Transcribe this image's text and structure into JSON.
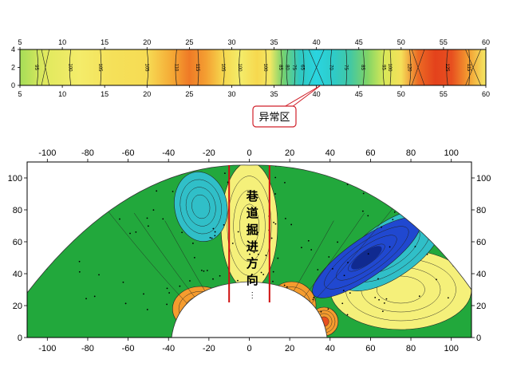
{
  "chart_data": [
    {
      "type": "heatmap",
      "title": "",
      "xlabel": "",
      "ylabel": "",
      "xlim": [
        5,
        60
      ],
      "ylim": [
        0,
        4
      ],
      "x_ticks": [
        "5",
        "10",
        "15",
        "20",
        "25",
        "30",
        "35",
        "40",
        "45",
        "50",
        "55",
        "60"
      ],
      "y_ticks": [
        "0",
        "2",
        "4"
      ],
      "contour_labels": [
        {
          "x": 7,
          "label": "95"
        },
        {
          "x": 11,
          "label": "100"
        },
        {
          "x": 14.5,
          "label": "105"
        },
        {
          "x": 20,
          "label": "105"
        },
        {
          "x": 23.5,
          "label": "110"
        },
        {
          "x": 26,
          "label": "115"
        },
        {
          "x": 29,
          "label": "105"
        },
        {
          "x": 31,
          "label": "100"
        },
        {
          "x": 34,
          "label": "100"
        },
        {
          "x": 35.8,
          "label": "85"
        },
        {
          "x": 36.6,
          "label": "80"
        },
        {
          "x": 37.4,
          "label": "75"
        },
        {
          "x": 38.4,
          "label": "65"
        },
        {
          "x": 41.8,
          "label": "70"
        },
        {
          "x": 43.5,
          "label": "75"
        },
        {
          "x": 45.5,
          "label": "85"
        },
        {
          "x": 48,
          "label": "95"
        },
        {
          "x": 48.7,
          "label": "100"
        },
        {
          "x": 51,
          "label": "120"
        },
        {
          "x": 55.5,
          "label": "125"
        },
        {
          "x": 58,
          "label": "115"
        }
      ],
      "value_profile": [
        {
          "x": 5,
          "v": 90
        },
        {
          "x": 8,
          "v": 97
        },
        {
          "x": 12,
          "v": 101
        },
        {
          "x": 16,
          "v": 104
        },
        {
          "x": 20,
          "v": 105
        },
        {
          "x": 23,
          "v": 112
        },
        {
          "x": 25,
          "v": 118
        },
        {
          "x": 27,
          "v": 113
        },
        {
          "x": 29,
          "v": 106
        },
        {
          "x": 31,
          "v": 101
        },
        {
          "x": 33,
          "v": 106
        },
        {
          "x": 34.5,
          "v": 102
        },
        {
          "x": 36,
          "v": 85
        },
        {
          "x": 38,
          "v": 70
        },
        {
          "x": 40,
          "v": 62
        },
        {
          "x": 42,
          "v": 68
        },
        {
          "x": 44,
          "v": 76
        },
        {
          "x": 46,
          "v": 86
        },
        {
          "x": 48,
          "v": 95
        },
        {
          "x": 50,
          "v": 104
        },
        {
          "x": 52,
          "v": 120
        },
        {
          "x": 54,
          "v": 126
        },
        {
          "x": 56,
          "v": 124
        },
        {
          "x": 58,
          "v": 113
        },
        {
          "x": 60,
          "v": 102
        }
      ],
      "annotation": {
        "label": "异常区",
        "x": 40,
        "y": 0
      }
    },
    {
      "type": "heatmap",
      "title": "",
      "xlabel": "",
      "ylabel": "",
      "xlim": [
        -110,
        110
      ],
      "ylim": [
        0,
        110
      ],
      "x_ticks": [
        "-100",
        "-80",
        "-60",
        "-40",
        "-20",
        "0",
        "20",
        "40",
        "60",
        "80",
        "100"
      ],
      "y_ticks": [
        "0",
        "20",
        "40",
        "60",
        "80",
        "100"
      ],
      "tunnel_walls_x": [
        -10,
        10
      ],
      "tunnel_label": [
        "巷",
        "道",
        "掘",
        "进",
        "方",
        "向"
      ],
      "zones": [
        {
          "level": "low",
          "cx": 58,
          "cy": 50,
          "rx": 32,
          "ry": 12,
          "angle": -35
        },
        {
          "level": "low-mid",
          "cx": -24,
          "cy": 82,
          "rx": 13,
          "ry": 22,
          "angle": -10
        },
        {
          "level": "low-mid",
          "cx": 70,
          "cy": 55,
          "rx": 30,
          "ry": 17,
          "angle": -35
        },
        {
          "level": "high",
          "cx": -24,
          "cy": 18,
          "rx": 14,
          "ry": 14,
          "angle": 0
        },
        {
          "level": "high",
          "cx": 21,
          "cy": 20,
          "rx": 12,
          "ry": 15,
          "angle": 0
        },
        {
          "level": "high",
          "cx": 37,
          "cy": 10,
          "rx": 7,
          "ry": 9,
          "angle": 0
        },
        {
          "level": "mid",
          "cx": 75,
          "cy": 30,
          "rx": 35,
          "ry": 25,
          "angle": 0
        },
        {
          "level": "mid",
          "cx": 0,
          "cy": 70,
          "rx": 14,
          "ry": 40,
          "angle": 0
        }
      ]
    }
  ],
  "colors": {
    "low": "#2048d0",
    "low_mid": "#30bfc8",
    "mid": "#f5f07a",
    "base": "#22a83c",
    "high": "#f59c2e",
    "high2": "#e8501e",
    "annotation": "#d0202a",
    "tunnel": "#d01010"
  }
}
